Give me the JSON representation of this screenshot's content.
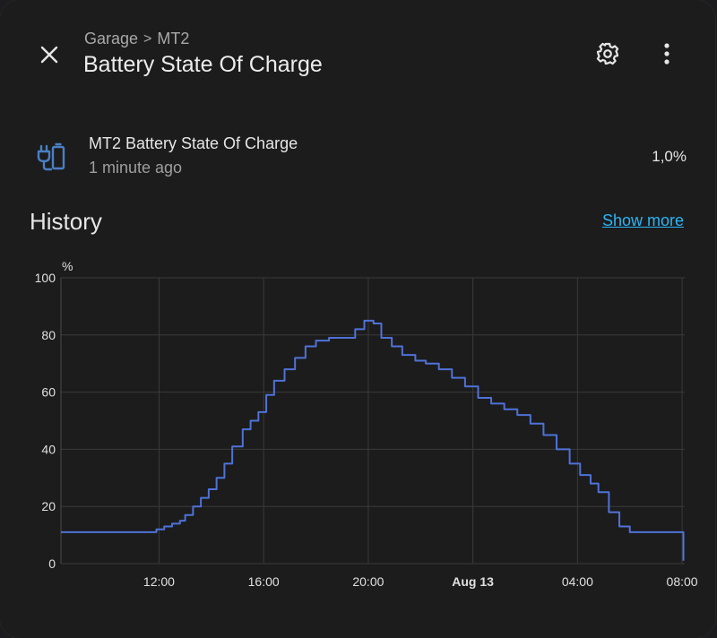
{
  "header": {
    "breadcrumb": [
      "Garage",
      "MT2"
    ],
    "breadcrumb_separator": ">",
    "title": "Battery State Of Charge"
  },
  "icons": {
    "close": "close-icon",
    "settings": "gear-icon",
    "more": "more-vertical-icon",
    "entity": "battery-charging-plug-icon"
  },
  "entity": {
    "name": "MT2 Battery State Of Charge",
    "last_changed": "1 minute ago",
    "value": "1,0%"
  },
  "history": {
    "title": "History",
    "show_more": "Show more"
  },
  "colors": {
    "accent_link": "#29b6f6",
    "line": "#4f72d8",
    "entity_icon": "#4a7fc4"
  },
  "chart_data": {
    "type": "line",
    "step": true,
    "ylabel": "%",
    "ylim": [
      0,
      100
    ],
    "yticks": [
      "0",
      "20",
      "40",
      "60",
      "80",
      "100"
    ],
    "xtick_labels": [
      "12:00",
      "16:00",
      "20:00",
      "Aug 13",
      "04:00",
      "08:00"
    ],
    "xlim_hours": [
      8.25,
      32.1
    ],
    "xtick_hours": [
      12,
      16,
      20,
      24,
      28,
      32
    ],
    "bold_xtick": "Aug 13",
    "grid": true,
    "series": [
      {
        "x_hours": [
          8.25,
          11.5,
          11.9,
          12.2,
          12.5,
          12.8,
          13.0,
          13.3,
          13.6,
          13.9,
          14.2,
          14.5,
          14.8,
          15.2,
          15.5,
          15.8,
          16.1,
          16.4,
          16.8,
          17.2,
          17.6,
          18.0,
          18.5,
          19.0,
          19.5,
          19.85,
          20.2,
          20.5,
          20.9,
          21.3,
          21.8,
          22.2,
          22.7,
          23.2,
          23.7,
          24.2,
          24.7,
          25.2,
          25.7,
          26.2,
          26.7,
          27.2,
          27.7,
          28.1,
          28.5,
          28.8,
          29.2,
          29.6,
          30.0,
          30.5,
          31.0,
          31.5,
          31.95,
          32.05
        ],
        "y": [
          11,
          11,
          12,
          13,
          14,
          15,
          17,
          20,
          23,
          26,
          30,
          35,
          41,
          47,
          50,
          53,
          59,
          64,
          68,
          72,
          76,
          78,
          79,
          79,
          82,
          85,
          84,
          79,
          76,
          73,
          71,
          70,
          68,
          65,
          62,
          58,
          56,
          54,
          52,
          49,
          45,
          40,
          35,
          31,
          28,
          25,
          18,
          13,
          11,
          11,
          11,
          11,
          11,
          1
        ]
      }
    ]
  }
}
